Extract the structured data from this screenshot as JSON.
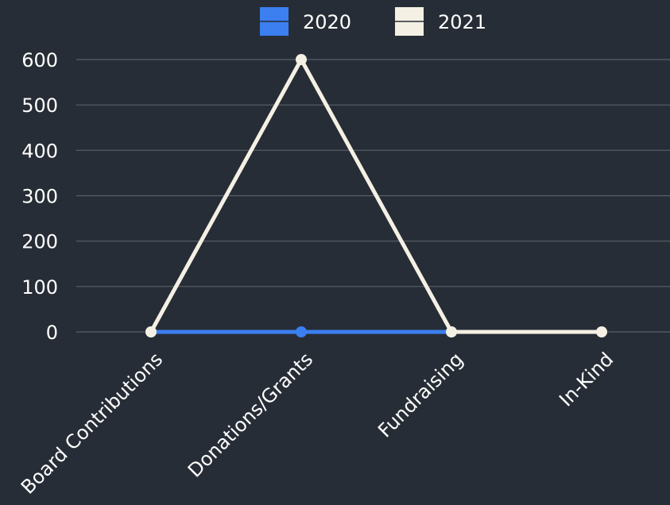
{
  "theme": {
    "background": "#272d36",
    "grid_color": "#5a6068",
    "text_color": "#ffffff"
  },
  "chart_data": {
    "type": "line",
    "title": "",
    "xlabel": "",
    "ylabel": "",
    "categories": [
      "Board Contributions",
      "Donations/Grants",
      "Fundraising",
      "In-Kind"
    ],
    "ylim": [
      0,
      600
    ],
    "yticks": [
      0,
      100,
      200,
      300,
      400,
      500,
      600
    ],
    "grid": true,
    "legend_position": "top-center",
    "series": [
      {
        "name": "2020",
        "color": "#3b7ff0",
        "values": [
          0,
          0,
          0,
          null
        ]
      },
      {
        "name": "2021",
        "color": "#f4f0e4",
        "values": [
          0,
          600,
          0,
          0
        ]
      }
    ]
  }
}
